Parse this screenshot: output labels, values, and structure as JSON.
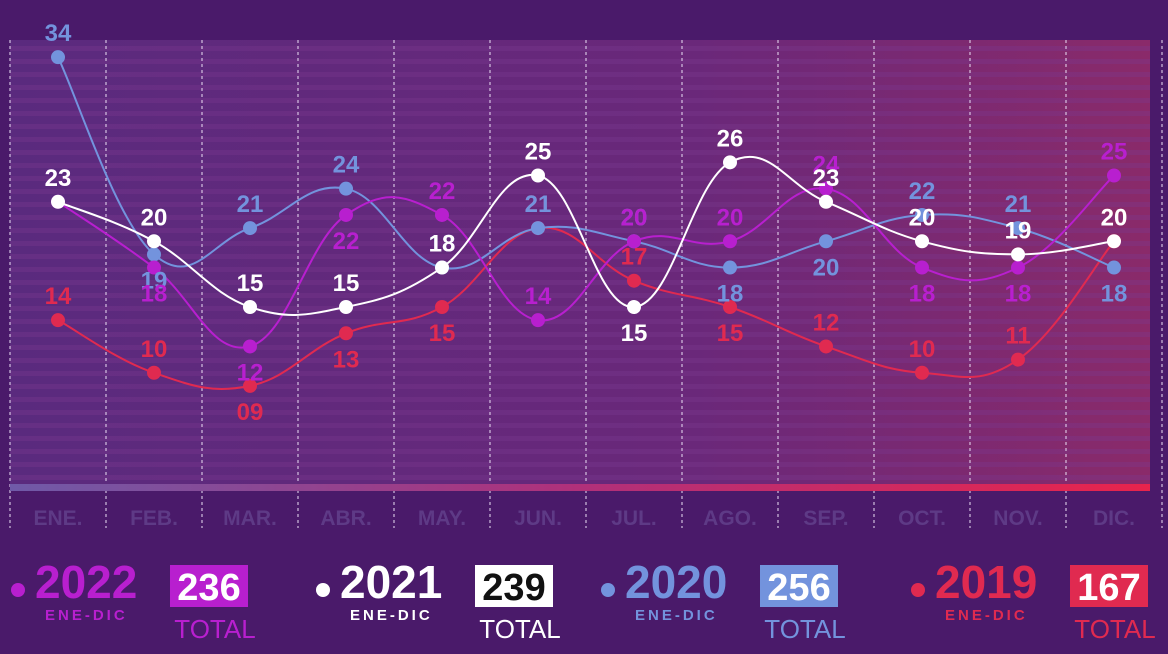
{
  "colors": {
    "background": "#4a1a6a",
    "series_2022": "#b81fcf",
    "series_2021": "#ffffff",
    "series_2020": "#7393dd",
    "series_2019": "#e02a50"
  },
  "chart_data": {
    "type": "line",
    "categories": [
      "ENE.",
      "FEB.",
      "MAR.",
      "ABR.",
      "MAY.",
      "JUN.",
      "JUL.",
      "AGO.",
      "SEP.",
      "OCT.",
      "NOV.",
      "DIC."
    ],
    "series": [
      {
        "name": "2022",
        "values": [
          23,
          18,
          12,
          22,
          22,
          14,
          20,
          20,
          24,
          18,
          18,
          25
        ],
        "labels": [
          "23",
          "18",
          "12",
          "22",
          "22",
          "14",
          "20",
          "20",
          "24",
          "18",
          "18",
          "25"
        ]
      },
      {
        "name": "2021",
        "values": [
          23,
          20,
          15,
          15,
          18,
          25,
          15,
          26,
          23,
          20,
          19,
          20
        ],
        "labels": [
          "23",
          "20",
          "15",
          "15",
          "18",
          "25",
          "15",
          "26",
          "23",
          "20",
          "19",
          "20"
        ]
      },
      {
        "name": "2020",
        "values": [
          34,
          19,
          21,
          24,
          18,
          21,
          20,
          18,
          20,
          22,
          21,
          18
        ],
        "labels": [
          "34",
          "19",
          "21",
          "24",
          "18",
          "21",
          "20",
          "18",
          "20",
          "22",
          "21",
          "18"
        ]
      },
      {
        "name": "2019",
        "values": [
          14,
          10,
          9,
          13,
          15,
          21,
          17,
          15,
          12,
          10,
          11,
          20
        ],
        "labels": [
          "14",
          "10",
          "09",
          "13",
          "15",
          "21",
          "17",
          "15",
          "12",
          "10",
          "11",
          "20"
        ]
      }
    ],
    "ylim": [
      5,
      36
    ],
    "grid": true
  },
  "legend": [
    {
      "year": "2022",
      "period": "ENE-DIC",
      "total": "236",
      "total_label": "TOTAL"
    },
    {
      "year": "2021",
      "period": "ENE-DIC",
      "total": "239",
      "total_label": "TOTAL"
    },
    {
      "year": "2020",
      "period": "ENE-DIC",
      "total": "256",
      "total_label": "TOTAL"
    },
    {
      "year": "2019",
      "period": "ENE-DIC",
      "total": "167",
      "total_label": "TOTAL"
    }
  ]
}
